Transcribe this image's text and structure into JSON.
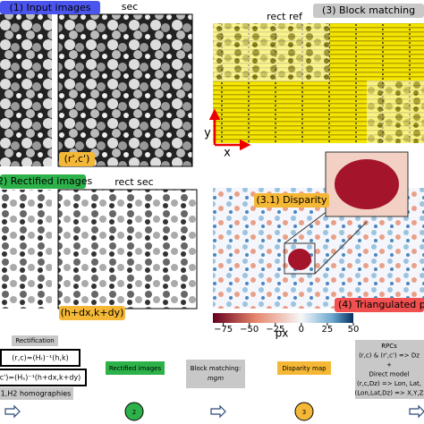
{
  "panels": {
    "input": {
      "title": "(1) Input images",
      "sec_label": "sec",
      "point": "(r',c')"
    },
    "matching": {
      "ref_label": "rect ref",
      "title": "(3) Block matching",
      "axis_y": "y",
      "axis_x": "x"
    },
    "rectified": {
      "title": "(2) Rectified images",
      "sec_label": "rect sec",
      "point": "(h+dx,k+dy)"
    },
    "disparity": {
      "title": "(3.1) Disparity",
      "colorbar": {
        "lim": [
          -85,
          50
        ],
        "ticks": [
          {
            "value": -75,
            "label": "−75"
          },
          {
            "value": -50,
            "label": "−50"
          },
          {
            "value": -25,
            "label": "−25"
          },
          0,
          25,
          50
        ],
        "label": "px"
      }
    },
    "triangulation": {
      "title": "(4) Triangulated p"
    }
  },
  "pipeline": {
    "rectification": {
      "title": "Rectification",
      "eq1": "(r,c)=(Hᵣ)⁻¹(h,k)",
      "eq2": "c')=(Hₛ)⁻¹(h+dx,k+dy)",
      "note": "1,H2 homographies"
    },
    "rectified": "Rectified images",
    "matching": {
      "title": "Block matching:",
      "method": "mgm"
    },
    "disparity": "Disparity map",
    "rpc": [
      "RPCs",
      "(r,c) & (r',c') => Dz",
      "+",
      "Direct model",
      "(r,c,Dz) => Lon, Lat,",
      "(Lon,Lat,Dz) => X,Y,Z"
    ],
    "steps": [
      "2",
      "3"
    ]
  }
}
